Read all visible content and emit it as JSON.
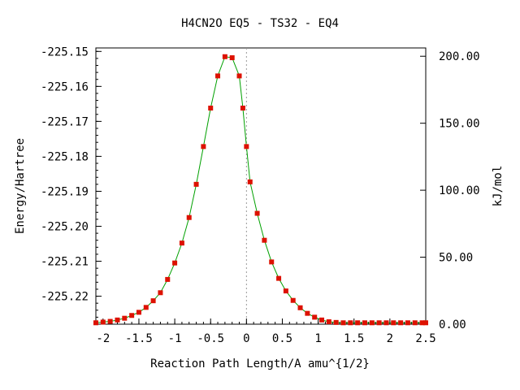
{
  "chart_data": {
    "type": "line",
    "title": "H4CN2O   EQ5 - TS32 - EQ4",
    "xlabel": "Reaction Path Length/A amu^{1/2}",
    "ylabel": "Energy/Hartree",
    "y2label": "kJ/mol",
    "xlim": [
      -2.1,
      2.5
    ],
    "ylim": [
      -225.228,
      -225.149
    ],
    "y2lim": [
      0.0,
      206.2
    ],
    "x_ticks": [
      -2,
      -1.5,
      -1,
      -0.5,
      0,
      0.5,
      1,
      1.5,
      2,
      2.5
    ],
    "x_tick_labels": [
      "-2",
      "-1.5",
      "-1",
      "-0.5",
      "0",
      "0.5",
      "1",
      "1.5",
      "2",
      "2.5"
    ],
    "y_ticks": [
      -225.22,
      -225.21,
      -225.2,
      -225.19,
      -225.18,
      -225.17,
      -225.16,
      -225.15
    ],
    "y_tick_labels": [
      "-225.22",
      "-225.21",
      "-225.20",
      "-225.19",
      "-225.18",
      "-225.17",
      "-225.16",
      "-225.15"
    ],
    "y2_ticks": [
      0,
      50,
      100,
      150,
      200
    ],
    "y2_tick_labels": [
      "0.00",
      "50.00",
      "100.00",
      "150.00",
      "200.00"
    ],
    "grid": false,
    "line_color": "#00a000",
    "marker_color": "#dd1100",
    "ts_line_color": "#999999",
    "ts_x": 0,
    "series": [
      {
        "x": [
          -2.1,
          -2.0,
          -1.9,
          -1.8,
          -1.7,
          -1.6,
          -1.5,
          -1.4,
          -1.3,
          -1.2,
          -1.1,
          -1.0,
          -0.9,
          -0.8,
          -0.7,
          -0.6,
          -0.5,
          -0.4,
          -0.3,
          -0.2,
          -0.1,
          -0.05,
          0.0,
          0.05,
          0.15,
          0.25,
          0.35,
          0.45,
          0.55,
          0.65,
          0.75,
          0.85,
          0.95,
          1.05,
          1.15,
          1.25,
          1.35,
          1.45,
          1.55,
          1.65,
          1.75,
          1.85,
          1.95,
          2.05,
          2.15,
          2.25,
          2.35,
          2.45,
          2.5
        ],
        "y": [
          -225.2276,
          -225.2274,
          -225.2272,
          -225.2268,
          -225.2263,
          -225.2255,
          -225.2246,
          -225.2232,
          -225.2213,
          -225.219,
          -225.2152,
          -225.2105,
          -225.2048,
          -225.1975,
          -225.188,
          -225.1772,
          -225.1662,
          -225.157,
          -225.1515,
          -225.1518,
          -225.157,
          -225.1662,
          -225.1772,
          -225.1873,
          -225.1963,
          -225.204,
          -225.2102,
          -225.2149,
          -225.2185,
          -225.2212,
          -225.2233,
          -225.2249,
          -225.226,
          -225.2268,
          -225.2273,
          -225.2275,
          -225.2276,
          -225.2276,
          -225.2276,
          -225.2276,
          -225.2276,
          -225.2276,
          -225.2276,
          -225.2276,
          -225.2276,
          -225.2276,
          -225.2276,
          -225.2276,
          -225.2276
        ]
      }
    ]
  }
}
